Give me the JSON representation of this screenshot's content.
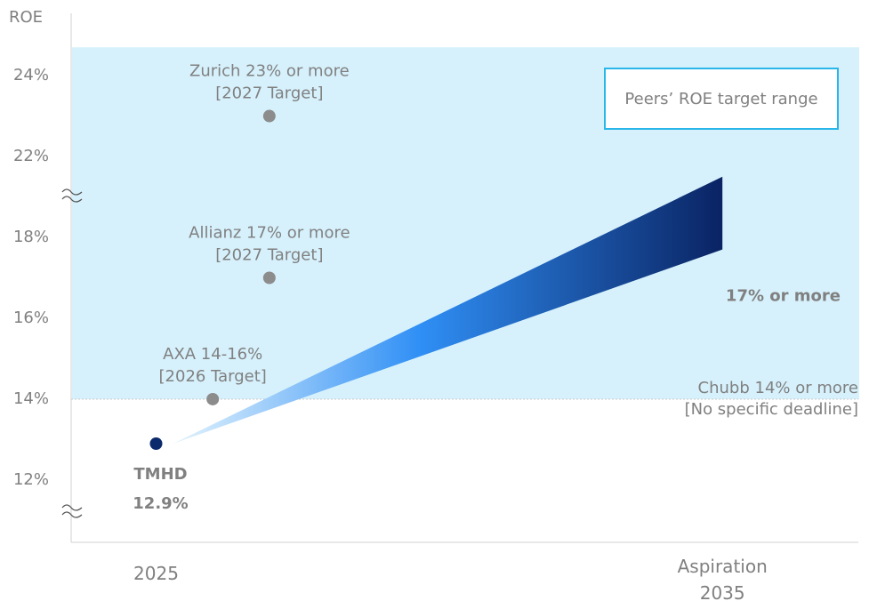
{
  "chart_data": {
    "type": "scatter",
    "y_label": "ROE",
    "ylim": [
      10.46,
      25.54
    ],
    "y_break": [
      18,
      22
    ],
    "yticks": [
      {
        "value": 12,
        "label": "12%"
      },
      {
        "value": 14,
        "label": "14%"
      },
      {
        "value": 16,
        "label": "16%"
      },
      {
        "value": 18,
        "label": "18%"
      },
      {
        "value": 22,
        "label": "22%"
      },
      {
        "value": 24,
        "label": "24%"
      }
    ],
    "xlim": [
      2023.5,
      2037.4
    ],
    "xticks": [
      {
        "value": 2025,
        "label": "2025"
      },
      {
        "value": 2035,
        "label": "Aspiration\n2035"
      }
    ],
    "band": {
      "label": "Peers’ ROE target range",
      "range": [
        14,
        24.7
      ],
      "color": "#d6f1fc",
      "border": "#29b6e8"
    },
    "threshold": {
      "label": [
        "Chubb 14% or more",
        "[No specific deadline]"
      ],
      "value": 14
    },
    "points": [
      {
        "label": [
          "TMHD",
          "12.9%"
        ],
        "x": 2025,
        "y": 12.9,
        "color": "#0b2a6b"
      },
      {
        "label": [
          "AXA 14-16%",
          "[2026 Target]"
        ],
        "x": 2026,
        "y": 14,
        "color": "#8c8c8c"
      },
      {
        "label": [
          "Allianz 17% or more",
          "[2027 Target]"
        ],
        "x": 2027,
        "y": 17,
        "color": "#8c8c8c"
      },
      {
        "label": [
          "Zurich   23% or more",
          "[2027 Target]"
        ],
        "x": 2027,
        "y": 23,
        "color": "#8c8c8c"
      }
    ],
    "wedge": {
      "label": "17% or more",
      "x": [
        2025.3,
        2035
      ],
      "start": 12.9,
      "end_low": 17.7,
      "end_high": 21
    }
  }
}
